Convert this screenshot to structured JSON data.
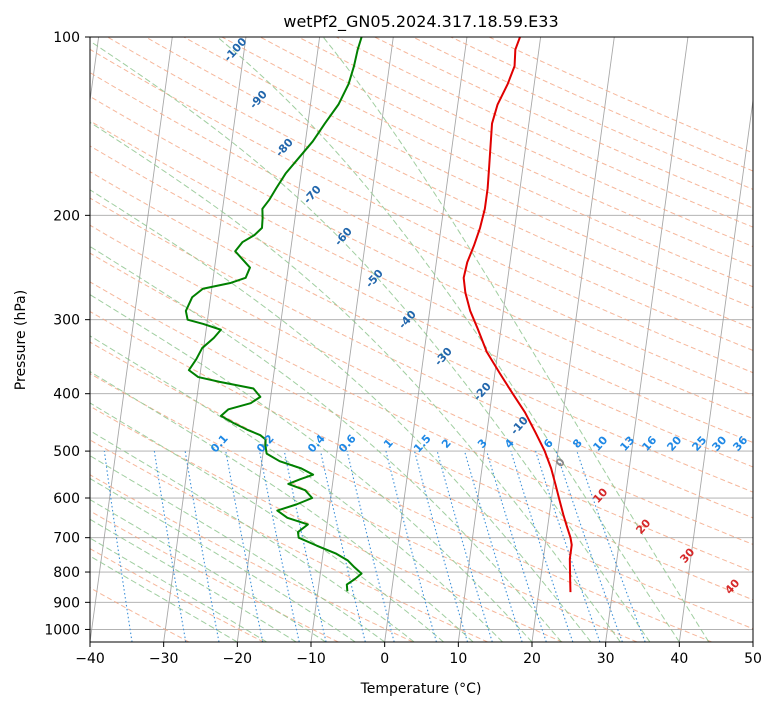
{
  "chart_data": {
    "type": "line",
    "title": "wetPf2_GN05.2024.317.18.59.E33",
    "xlabel": "Temperature (°C)",
    "ylabel": "Pressure (hPa)",
    "xlim": [
      -40,
      50
    ],
    "ylim": [
      1050,
      100
    ],
    "y_scale": "log",
    "skew": "skew-T",
    "x_ticks": [
      -40,
      -30,
      -20,
      -10,
      0,
      10,
      20,
      30,
      40,
      50
    ],
    "y_ticks": [
      100,
      200,
      300,
      400,
      500,
      600,
      700,
      800,
      900,
      1000
    ],
    "grid": true,
    "series": [
      {
        "color": "#e00000",
        "points": [
          [
            24.3,
            865
          ],
          [
            24.0,
            820
          ],
          [
            23.6,
            760
          ],
          [
            23.6,
            720
          ],
          [
            23.3,
            700
          ],
          [
            22.6,
            670
          ],
          [
            21.9,
            640
          ],
          [
            21.0,
            600
          ],
          [
            20.3,
            570
          ],
          [
            19.4,
            535
          ],
          [
            18.2,
            500
          ],
          [
            16.6,
            465
          ],
          [
            14.8,
            430
          ],
          [
            12.8,
            400
          ],
          [
            10.7,
            370
          ],
          [
            8.5,
            340
          ],
          [
            6.8,
            310
          ],
          [
            5.5,
            290
          ],
          [
            4.5,
            270
          ],
          [
            4.0,
            255
          ],
          [
            4.2,
            240
          ],
          [
            4.8,
            225
          ],
          [
            5.3,
            210
          ],
          [
            5.6,
            195
          ],
          [
            5.6,
            180
          ],
          [
            5.4,
            165
          ],
          [
            5.2,
            152
          ],
          [
            5.0,
            140
          ],
          [
            5.4,
            130
          ],
          [
            6.4,
            120
          ],
          [
            7.0,
            112
          ],
          [
            6.8,
            105
          ],
          [
            7.2,
            100
          ]
        ]
      },
      {
        "color": "#008000",
        "points": [
          [
            -6.0,
            862
          ],
          [
            -6.2,
            840
          ],
          [
            -5.2,
            822
          ],
          [
            -4.4,
            805
          ],
          [
            -5.5,
            785
          ],
          [
            -6.5,
            765
          ],
          [
            -8.2,
            745
          ],
          [
            -11.0,
            722
          ],
          [
            -13.6,
            700
          ],
          [
            -13.8,
            685
          ],
          [
            -12.6,
            665
          ],
          [
            -15.5,
            648
          ],
          [
            -17.0,
            630
          ],
          [
            -14.5,
            615
          ],
          [
            -12.5,
            600
          ],
          [
            -13.6,
            582
          ],
          [
            -16.0,
            568
          ],
          [
            -14.5,
            558
          ],
          [
            -12.8,
            548
          ],
          [
            -14.5,
            535
          ],
          [
            -17.6,
            520
          ],
          [
            -19.5,
            505
          ],
          [
            -19.8,
            490
          ],
          [
            -19.9,
            478
          ],
          [
            -20.7,
            470
          ],
          [
            -22.6,
            460
          ],
          [
            -24.6,
            448
          ],
          [
            -26.4,
            436
          ],
          [
            -25.5,
            425
          ],
          [
            -22.6,
            415
          ],
          [
            -21.4,
            405
          ],
          [
            -22.5,
            392
          ],
          [
            -27.2,
            382
          ],
          [
            -30.2,
            375
          ],
          [
            -31.6,
            365
          ],
          [
            -30.8,
            350
          ],
          [
            -30.2,
            335
          ],
          [
            -28.8,
            322
          ],
          [
            -28.0,
            312
          ],
          [
            -30.5,
            305
          ],
          [
            -32.7,
            300
          ],
          [
            -33.1,
            290
          ],
          [
            -32.5,
            275
          ],
          [
            -31.2,
            266
          ],
          [
            -27.5,
            260
          ],
          [
            -25.6,
            255
          ],
          [
            -25.2,
            245
          ],
          [
            -26.4,
            237
          ],
          [
            -27.5,
            230
          ],
          [
            -26.7,
            222
          ],
          [
            -25.2,
            216
          ],
          [
            -24.3,
            210
          ],
          [
            -24.4,
            202
          ],
          [
            -24.6,
            195
          ],
          [
            -23.8,
            188
          ],
          [
            -23.1,
            180
          ],
          [
            -22.1,
            170
          ],
          [
            -20.6,
            160
          ],
          [
            -19.0,
            150
          ],
          [
            -17.7,
            140
          ],
          [
            -16.2,
            130
          ],
          [
            -15.2,
            120
          ],
          [
            -14.8,
            112
          ],
          [
            -14.6,
            105
          ],
          [
            -14.3,
            100
          ]
        ]
      }
    ],
    "dry_adiabat_labels": [
      "-100",
      "-90",
      "-80",
      "-70",
      "-60",
      "-50",
      "-40",
      "-30",
      "-20",
      "-10"
    ],
    "mixing_ratio_labels": [
      "0.1",
      "0.2",
      "0.4",
      "0.6",
      "1",
      "1.5",
      "2",
      "3",
      "4",
      "6",
      "8",
      "10",
      "13",
      "16",
      "20",
      "25",
      "30",
      "36"
    ],
    "moist_adiabat_labels": [
      "0",
      "10",
      "20",
      "30",
      "40"
    ],
    "colors": {
      "dry_adiabat": "#f4a582",
      "moist_adiabat": "#8fc68f",
      "mixing_ratio": "#3b8fd8",
      "isotherm": "#999999",
      "dry_label": "#2166ac",
      "mixing_label": "#1e88e5",
      "moist_label": "#d62728"
    }
  }
}
